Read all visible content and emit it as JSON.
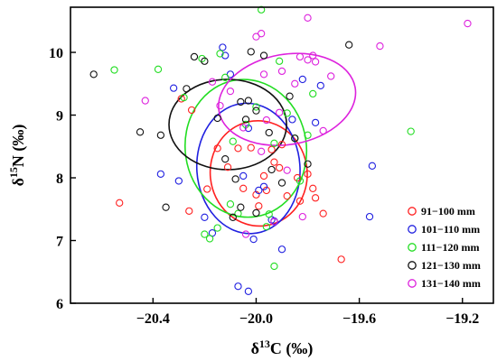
{
  "chart_data": {
    "type": "scatter",
    "title": "",
    "xlabel": "δ13C (‰)",
    "ylabel": "δ15N (‰)",
    "xlim": [
      -20.72,
      -19.08
    ],
    "ylim": [
      6.0,
      10.72
    ],
    "xticks": [
      -20.4,
      -20.0,
      -19.6,
      -19.2
    ],
    "yticks": [
      6,
      7,
      8,
      9,
      10
    ],
    "grid": false,
    "legend_position": "bottom-right",
    "marker": "open-circle",
    "series": [
      {
        "name": "91−100 mm",
        "color": "#ff2020",
        "points": [
          [
            -20.53,
            7.6
          ],
          [
            -20.29,
            9.26
          ],
          [
            -20.25,
            9.08
          ],
          [
            -20.19,
            7.82
          ],
          [
            -20.15,
            8.47
          ],
          [
            -20.11,
            8.17
          ],
          [
            -20.07,
            8.47
          ],
          [
            -20.05,
            7.83
          ],
          [
            -20.02,
            8.48
          ],
          [
            -20.0,
            7.73
          ],
          [
            -19.97,
            8.03
          ],
          [
            -19.96,
            7.8
          ],
          [
            -19.94,
            8.45
          ],
          [
            -19.93,
            8.25
          ],
          [
            -19.91,
            8.16
          ],
          [
            -19.9,
            8.53
          ],
          [
            -19.88,
            7.71
          ],
          [
            -19.84,
            8.0
          ],
          [
            -19.83,
            7.63
          ],
          [
            -19.8,
            8.06
          ],
          [
            -19.78,
            7.83
          ],
          [
            -19.77,
            7.68
          ],
          [
            -19.74,
            7.43
          ],
          [
            -19.67,
            6.7
          ],
          [
            -19.99,
            7.55
          ],
          [
            -20.26,
            7.47
          ]
        ]
      },
      {
        "name": "101−110 mm",
        "color": "#2020e0",
        "points": [
          [
            -20.37,
            8.06
          ],
          [
            -20.32,
            9.43
          ],
          [
            -20.3,
            7.95
          ],
          [
            -20.2,
            7.37
          ],
          [
            -20.13,
            10.08
          ],
          [
            -20.12,
            9.95
          ],
          [
            -20.1,
            9.65
          ],
          [
            -20.05,
            8.03
          ],
          [
            -20.03,
            8.79
          ],
          [
            -20.01,
            7.02
          ],
          [
            -19.99,
            7.8
          ],
          [
            -19.97,
            7.86
          ],
          [
            -19.94,
            7.33
          ],
          [
            -19.93,
            7.31
          ],
          [
            -19.9,
            6.86
          ],
          [
            -19.86,
            8.93
          ],
          [
            -19.82,
            9.57
          ],
          [
            -19.77,
            8.88
          ],
          [
            -19.75,
            9.47
          ],
          [
            -19.55,
            8.19
          ],
          [
            -19.56,
            7.38
          ],
          [
            -20.07,
            6.27
          ],
          [
            -20.03,
            6.19
          ],
          [
            -20.17,
            7.12
          ]
        ]
      },
      {
        "name": "111−120 mm",
        "color": "#22dd22",
        "points": [
          [
            -20.55,
            9.72
          ],
          [
            -20.38,
            9.73
          ],
          [
            -20.28,
            9.28
          ],
          [
            -20.21,
            9.9
          ],
          [
            -20.2,
            7.1
          ],
          [
            -20.18,
            7.03
          ],
          [
            -20.15,
            7.2
          ],
          [
            -20.12,
            9.6
          ],
          [
            -20.09,
            8.58
          ],
          [
            -20.07,
            7.43
          ],
          [
            -20.04,
            8.85
          ],
          [
            -20.0,
            9.13
          ],
          [
            -19.98,
            10.68
          ],
          [
            -19.96,
            7.22
          ],
          [
            -19.95,
            7.42
          ],
          [
            -19.93,
            8.55
          ],
          [
            -19.91,
            9.86
          ],
          [
            -19.88,
            9.03
          ],
          [
            -19.85,
            8.63
          ],
          [
            -19.83,
            7.95
          ],
          [
            -19.8,
            8.68
          ],
          [
            -19.78,
            9.34
          ],
          [
            -19.4,
            8.74
          ],
          [
            -19.93,
            6.59
          ],
          [
            -20.1,
            7.58
          ],
          [
            -20.14,
            9.98
          ]
        ]
      },
      {
        "name": "121−130 mm",
        "color": "#111111",
        "points": [
          [
            -20.63,
            9.65
          ],
          [
            -20.45,
            8.73
          ],
          [
            -20.37,
            8.68
          ],
          [
            -20.35,
            7.53
          ],
          [
            -20.27,
            9.42
          ],
          [
            -20.24,
            9.93
          ],
          [
            -20.2,
            9.86
          ],
          [
            -20.15,
            8.95
          ],
          [
            -20.12,
            8.3
          ],
          [
            -20.08,
            7.98
          ],
          [
            -20.06,
            7.53
          ],
          [
            -20.04,
            8.93
          ],
          [
            -20.03,
            9.23
          ],
          [
            -20.0,
            9.07
          ],
          [
            -20.0,
            7.44
          ],
          [
            -19.97,
            9.95
          ],
          [
            -19.95,
            8.72
          ],
          [
            -19.94,
            8.13
          ],
          [
            -19.9,
            7.92
          ],
          [
            -19.87,
            9.3
          ],
          [
            -19.85,
            8.63
          ],
          [
            -19.8,
            8.22
          ],
          [
            -19.64,
            10.12
          ],
          [
            -20.06,
            9.21
          ],
          [
            -20.02,
            10.01
          ],
          [
            -20.09,
            7.37
          ]
        ]
      },
      {
        "name": "131−140 mm",
        "color": "#dd22dd",
        "points": [
          [
            -20.43,
            9.23
          ],
          [
            -20.17,
            9.53
          ],
          [
            -20.1,
            9.38
          ],
          [
            -20.05,
            8.8
          ],
          [
            -20.04,
            7.1
          ],
          [
            -20.0,
            10.25
          ],
          [
            -19.98,
            10.3
          ],
          [
            -19.97,
            9.65
          ],
          [
            -19.96,
            8.92
          ],
          [
            -19.93,
            7.3
          ],
          [
            -19.9,
            9.7
          ],
          [
            -19.88,
            8.12
          ],
          [
            -19.85,
            9.5
          ],
          [
            -19.83,
            9.93
          ],
          [
            -19.82,
            7.38
          ],
          [
            -19.8,
            9.88
          ],
          [
            -19.78,
            9.95
          ],
          [
            -19.77,
            9.85
          ],
          [
            -19.74,
            8.75
          ],
          [
            -19.71,
            9.62
          ],
          [
            -19.52,
            10.1
          ],
          [
            -19.18,
            10.46
          ],
          [
            -19.8,
            10.55
          ],
          [
            -19.91,
            9.04
          ],
          [
            -19.98,
            8.42
          ],
          [
            -20.14,
            9.15
          ]
        ]
      }
    ],
    "ellipses": [
      {
        "series": "91−100 mm",
        "color": "#ff2020",
        "cx": -19.99,
        "cy": 8.07,
        "rx": 0.188,
        "ry": 0.84,
        "angle": -6
      },
      {
        "series": "101−110 mm",
        "color": "#2020e0",
        "cx": -20.03,
        "cy": 8.15,
        "rx": 0.2,
        "ry": 1.04,
        "angle": -4
      },
      {
        "series": "111−120 mm",
        "color": "#22dd22",
        "cx": -20.04,
        "cy": 8.47,
        "rx": 0.235,
        "ry": 1.1,
        "angle": -8
      },
      {
        "series": "121−130 mm",
        "color": "#111111",
        "cx": -20.11,
        "cy": 8.85,
        "rx": 0.228,
        "ry": 0.72,
        "angle": 0
      },
      {
        "series": "131−140 mm",
        "color": "#dd22dd",
        "cx": -19.88,
        "cy": 9.25,
        "rx": 0.268,
        "ry": 0.72,
        "angle": -10
      }
    ]
  }
}
